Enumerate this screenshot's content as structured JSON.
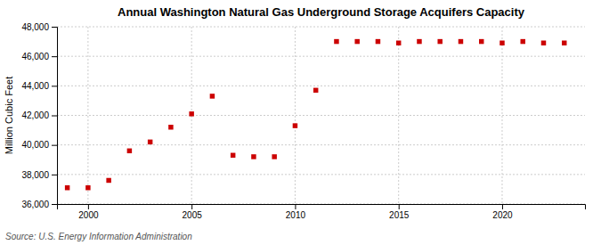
{
  "chart_data": {
    "type": "scatter",
    "title": "Annual Washington Natural Gas Underground Storage Acquifers Capacity",
    "ylabel": "Million Cubic Feet",
    "source": "Source: U.S. Energy Information Administration",
    "color": "#cc0000",
    "marker": "square",
    "x": [
      1999,
      2000,
      2001,
      2002,
      2003,
      2004,
      2005,
      2006,
      2007,
      2008,
      2009,
      2010,
      2011,
      2012,
      2013,
      2014,
      2015,
      2016,
      2017,
      2018,
      2019,
      2020,
      2021,
      2022,
      2023
    ],
    "values": [
      37100,
      37100,
      37600,
      39600,
      40200,
      41200,
      42100,
      43300,
      39300,
      39200,
      39200,
      41300,
      43700,
      47000,
      47000,
      47000,
      46900,
      47000,
      47000,
      47000,
      47000,
      46900,
      47000,
      46900,
      46900
    ],
    "xlim": [
      1998.5,
      2024
    ],
    "xticks": [
      2000,
      2005,
      2010,
      2015,
      2020
    ],
    "ylim": [
      36000,
      48000
    ],
    "yticks": [
      {
        "value": 36000,
        "label": "36,000"
      },
      {
        "value": 38000,
        "label": "38,000"
      },
      {
        "value": 40000,
        "label": "40,000"
      },
      {
        "value": 42000,
        "label": "42,000"
      },
      {
        "value": 44000,
        "label": "44,000"
      },
      {
        "value": 46000,
        "label": "46,000"
      },
      {
        "value": 48000,
        "label": "48,000"
      }
    ],
    "grid": true
  }
}
